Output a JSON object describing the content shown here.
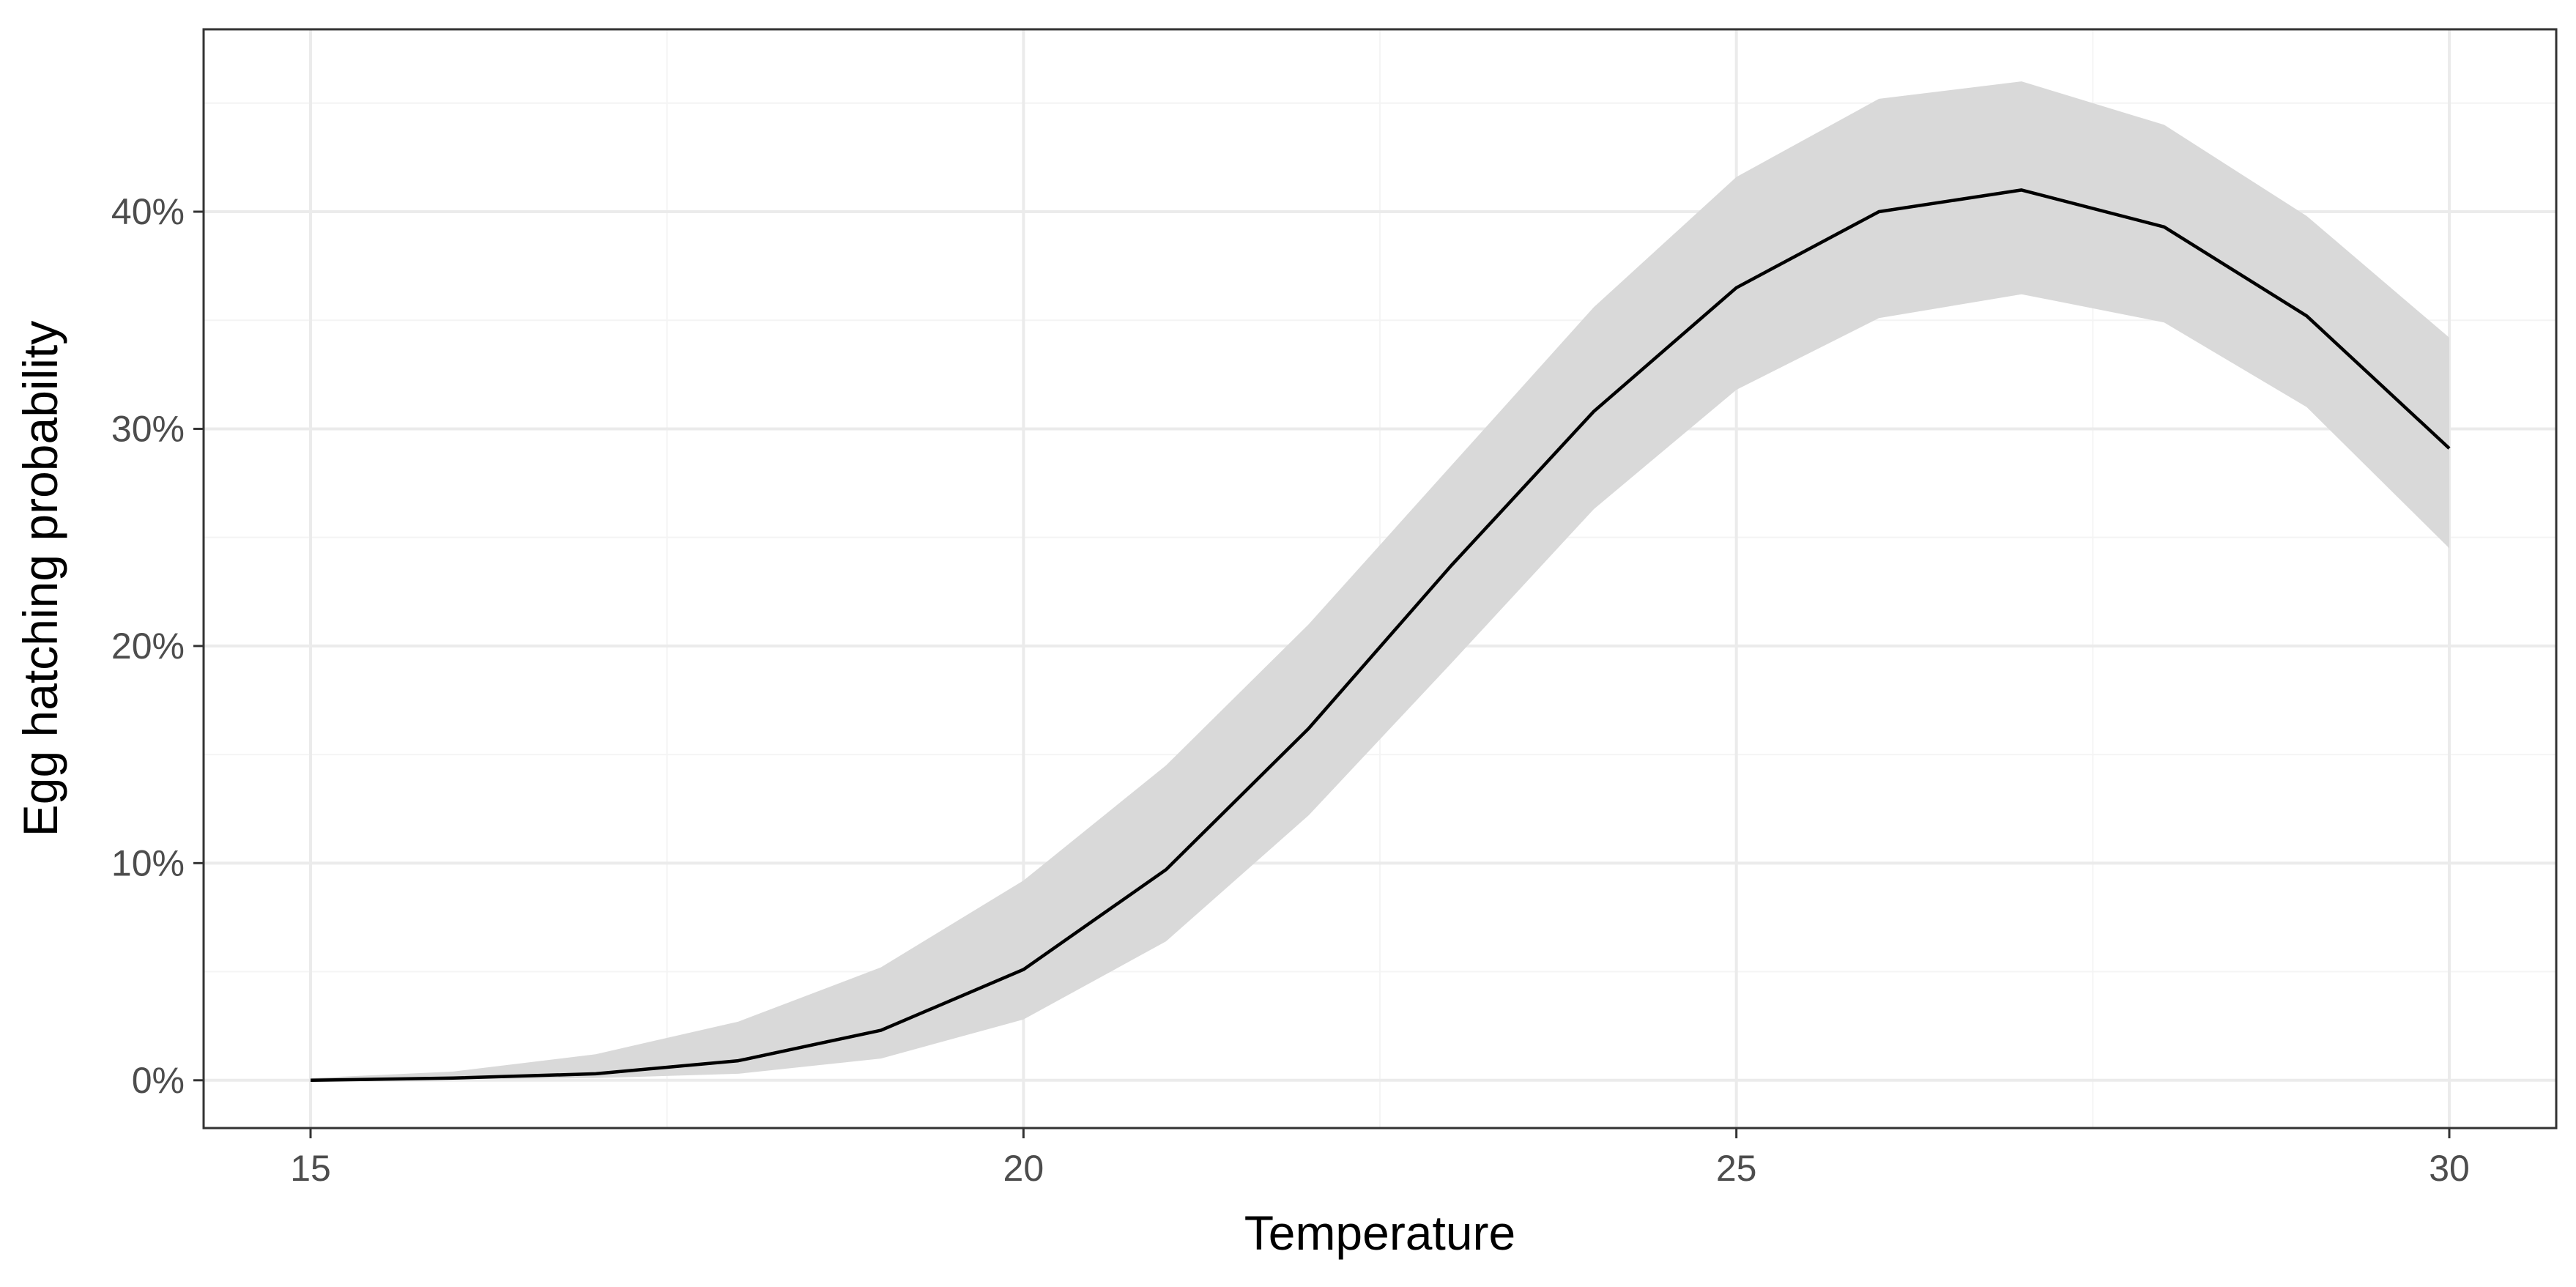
{
  "chart_data": {
    "type": "line",
    "title": "",
    "xlabel": "Temperature",
    "ylabel": "Egg hatching probability",
    "xlim": [
      14.25,
      30.75
    ],
    "ylim": [
      -0.022,
      0.484
    ],
    "x_ticks": [
      15,
      20,
      25,
      30
    ],
    "x_tick_labels": [
      "15",
      "20",
      "25",
      "30"
    ],
    "y_ticks": [
      0,
      0.1,
      0.2,
      0.3,
      0.4
    ],
    "y_tick_labels": [
      "0%",
      "10%",
      "20%",
      "30%",
      "40%"
    ],
    "grid": true,
    "legend": "none",
    "series": [
      {
        "x": [
          15,
          16,
          17,
          18,
          19,
          20,
          21,
          22,
          23,
          24,
          25,
          26,
          27,
          28,
          29,
          30
        ],
        "values": [
          0.0,
          0.001,
          0.003,
          0.009,
          0.023,
          0.051,
          0.097,
          0.162,
          0.237,
          0.308,
          0.365,
          0.4,
          0.41,
          0.393,
          0.352,
          0.291
        ],
        "lower": [
          0.0,
          0.0005,
          0.001,
          0.003,
          0.01,
          0.028,
          0.064,
          0.122,
          0.192,
          0.263,
          0.318,
          0.351,
          0.362,
          0.349,
          0.31,
          0.245
        ],
        "upper": [
          0.001,
          0.004,
          0.012,
          0.027,
          0.052,
          0.092,
          0.145,
          0.21,
          0.283,
          0.356,
          0.416,
          0.452,
          0.46,
          0.44,
          0.398,
          0.342
        ],
        "line_color": "#000000",
        "band_color": "#d9d9d9"
      }
    ],
    "colors": {
      "panel_border": "#333333",
      "major_grid": "#ebebeb",
      "minor_grid": "#f4f4f4",
      "axis_tick": "#333333"
    }
  }
}
